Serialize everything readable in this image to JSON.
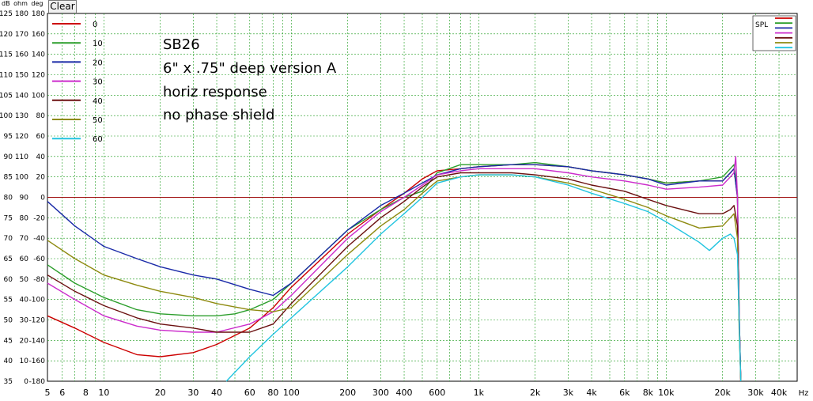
{
  "ui": {
    "clear_label": "Clear",
    "units_header": "dB  ohm deg"
  },
  "chart_data": {
    "type": "line",
    "x_scale": "log",
    "xlim": [
      5,
      50000
    ],
    "x_tick_labels": [
      {
        "v": 5,
        "t": "5"
      },
      {
        "v": 6,
        "t": "6"
      },
      {
        "v": 8,
        "t": "8"
      },
      {
        "v": 10,
        "t": "10"
      },
      {
        "v": 20,
        "t": "20"
      },
      {
        "v": 30,
        "t": "30"
      },
      {
        "v": 40,
        "t": "40"
      },
      {
        "v": 60,
        "t": "60"
      },
      {
        "v": 80,
        "t": "80"
      },
      {
        "v": 100,
        "t": "100"
      },
      {
        "v": 200,
        "t": "200"
      },
      {
        "v": 300,
        "t": "300"
      },
      {
        "v": 400,
        "t": "400"
      },
      {
        "v": 600,
        "t": "600"
      },
      {
        "v": 1000,
        "t": "1k"
      },
      {
        "v": 2000,
        "t": "2k"
      },
      {
        "v": 3000,
        "t": "3k"
      },
      {
        "v": 4000,
        "t": "4k"
      },
      {
        "v": 6000,
        "t": "6k"
      },
      {
        "v": 8000,
        "t": "8k"
      },
      {
        "v": 10000,
        "t": "10k"
      },
      {
        "v": 20000,
        "t": "20k"
      },
      {
        "v": 30000,
        "t": "30k"
      },
      {
        "v": 40000,
        "t": "40k"
      }
    ],
    "x_unit_label": "Hz",
    "ylim": [
      35,
      125
    ],
    "y_ticks_db": [
      125,
      120,
      115,
      110,
      105,
      100,
      95,
      90,
      85,
      80,
      75,
      70,
      65,
      60,
      55,
      50,
      45,
      40,
      35
    ],
    "y_ticks_ohm": [
      180,
      170,
      160,
      150,
      140,
      130,
      120,
      110,
      100,
      90,
      80,
      70,
      60,
      50,
      40,
      30,
      20,
      10,
      0
    ],
    "y_ticks_deg": [
      "180",
      "160",
      "140",
      "120",
      "100",
      "80",
      "60",
      "40",
      "20",
      "0",
      "-20",
      "-40",
      "-60",
      "-80",
      "-100",
      "-120",
      "-140",
      "-160",
      "-180"
    ],
    "reference_line_db": 80,
    "grid": true,
    "annotations": [
      "SB26",
      "6\" x .75\" deep version A",
      "horiz response",
      "no phase shield"
    ],
    "legend_label": "SPL",
    "legend_position": "top-right",
    "series": [
      {
        "name": "0",
        "color": "#cc0000",
        "points": [
          [
            5,
            51
          ],
          [
            7,
            48
          ],
          [
            10,
            44.5
          ],
          [
            15,
            41.5
          ],
          [
            20,
            41
          ],
          [
            30,
            42
          ],
          [
            40,
            44
          ],
          [
            60,
            48
          ],
          [
            80,
            53
          ],
          [
            100,
            58
          ],
          [
            200,
            71
          ],
          [
            300,
            77
          ],
          [
            400,
            81
          ],
          [
            500,
            84.5
          ],
          [
            600,
            86.5
          ],
          [
            800,
            87
          ],
          [
            1000,
            87.5
          ],
          [
            1500,
            88
          ],
          [
            2000,
            88
          ],
          [
            3000,
            87.5
          ],
          [
            4000,
            86.5
          ],
          [
            6000,
            85.5
          ],
          [
            8000,
            84.5
          ],
          [
            10000,
            83.5
          ],
          [
            15000,
            84
          ],
          [
            20000,
            84
          ],
          [
            22000,
            86
          ],
          [
            23000,
            87
          ],
          [
            24000,
            80
          ],
          [
            24500,
            52
          ],
          [
            25000,
            35
          ]
        ]
      },
      {
        "name": "10",
        "color": "#2b9e2b",
        "points": [
          [
            5,
            63.5
          ],
          [
            7,
            59
          ],
          [
            10,
            55.5
          ],
          [
            15,
            52.5
          ],
          [
            20,
            51.5
          ],
          [
            30,
            51
          ],
          [
            40,
            51
          ],
          [
            50,
            51.5
          ],
          [
            60,
            52.5
          ],
          [
            80,
            55
          ],
          [
            100,
            59
          ],
          [
            200,
            72
          ],
          [
            300,
            77
          ],
          [
            400,
            80
          ],
          [
            500,
            81.5
          ],
          [
            600,
            86
          ],
          [
            800,
            88
          ],
          [
            1000,
            88
          ],
          [
            1500,
            88
          ],
          [
            2000,
            88.5
          ],
          [
            3000,
            87.5
          ],
          [
            4000,
            86.5
          ],
          [
            6000,
            85.5
          ],
          [
            8000,
            84.5
          ],
          [
            10000,
            83.5
          ],
          [
            15000,
            84
          ],
          [
            20000,
            85
          ],
          [
            22000,
            87
          ],
          [
            23000,
            88
          ],
          [
            24000,
            81
          ],
          [
            24500,
            52
          ],
          [
            25000,
            35
          ]
        ]
      },
      {
        "name": "20",
        "color": "#1a2aa8",
        "points": [
          [
            5,
            79
          ],
          [
            7,
            73
          ],
          [
            10,
            68
          ],
          [
            15,
            65
          ],
          [
            20,
            63
          ],
          [
            30,
            61
          ],
          [
            40,
            60
          ],
          [
            60,
            57.5
          ],
          [
            80,
            56
          ],
          [
            100,
            59
          ],
          [
            200,
            72
          ],
          [
            300,
            78
          ],
          [
            400,
            81
          ],
          [
            500,
            83.5
          ],
          [
            600,
            85.5
          ],
          [
            800,
            87
          ],
          [
            1000,
            87.5
          ],
          [
            1500,
            88
          ],
          [
            2000,
            88
          ],
          [
            3000,
            87.5
          ],
          [
            4000,
            86.5
          ],
          [
            6000,
            85.5
          ],
          [
            8000,
            84.5
          ],
          [
            10000,
            83
          ],
          [
            15000,
            84
          ],
          [
            20000,
            84
          ],
          [
            22000,
            86
          ],
          [
            23000,
            87
          ],
          [
            24000,
            80
          ],
          [
            24500,
            52
          ],
          [
            25000,
            35
          ]
        ]
      },
      {
        "name": "30",
        "color": "#cc2ccc",
        "points": [
          [
            5,
            59
          ],
          [
            7,
            55
          ],
          [
            10,
            51
          ],
          [
            15,
            48.5
          ],
          [
            20,
            47.5
          ],
          [
            30,
            47
          ],
          [
            40,
            47
          ],
          [
            60,
            49
          ],
          [
            80,
            52
          ],
          [
            100,
            56
          ],
          [
            200,
            70
          ],
          [
            300,
            76.5
          ],
          [
            400,
            80
          ],
          [
            500,
            83
          ],
          [
            600,
            85.5
          ],
          [
            800,
            86.5
          ],
          [
            1000,
            87
          ],
          [
            1500,
            87
          ],
          [
            2000,
            87
          ],
          [
            3000,
            86
          ],
          [
            4000,
            85
          ],
          [
            6000,
            84
          ],
          [
            8000,
            83
          ],
          [
            10000,
            82
          ],
          [
            15000,
            82.5
          ],
          [
            20000,
            83
          ],
          [
            22000,
            85
          ],
          [
            23000,
            86
          ],
          [
            23500,
            90
          ],
          [
            24000,
            80
          ],
          [
            24500,
            52
          ],
          [
            25000,
            35
          ]
        ]
      },
      {
        "name": "40",
        "color": "#6b1010",
        "points": [
          [
            5,
            61
          ],
          [
            7,
            57
          ],
          [
            10,
            53.5
          ],
          [
            15,
            50.5
          ],
          [
            20,
            49
          ],
          [
            30,
            48
          ],
          [
            40,
            47
          ],
          [
            60,
            47
          ],
          [
            80,
            49
          ],
          [
            100,
            54
          ],
          [
            200,
            68
          ],
          [
            300,
            75
          ],
          [
            400,
            79
          ],
          [
            500,
            82.5
          ],
          [
            600,
            85
          ],
          [
            800,
            86
          ],
          [
            1000,
            86
          ],
          [
            1500,
            86
          ],
          [
            2000,
            85.5
          ],
          [
            3000,
            84.5
          ],
          [
            4000,
            83
          ],
          [
            6000,
            81.5
          ],
          [
            8000,
            79.5
          ],
          [
            10000,
            78
          ],
          [
            15000,
            76
          ],
          [
            20000,
            76
          ],
          [
            22000,
            77
          ],
          [
            23000,
            78
          ],
          [
            24000,
            73
          ],
          [
            24500,
            50
          ],
          [
            25000,
            35
          ]
        ]
      },
      {
        "name": "50",
        "color": "#8e8a10",
        "points": [
          [
            5,
            69.5
          ],
          [
            7,
            65
          ],
          [
            10,
            61
          ],
          [
            15,
            58.5
          ],
          [
            20,
            57
          ],
          [
            30,
            55.5
          ],
          [
            40,
            54
          ],
          [
            60,
            52.5
          ],
          [
            80,
            52
          ],
          [
            100,
            53
          ],
          [
            200,
            66
          ],
          [
            300,
            73
          ],
          [
            400,
            77
          ],
          [
            500,
            81
          ],
          [
            600,
            84
          ],
          [
            800,
            85
          ],
          [
            1000,
            85.5
          ],
          [
            1500,
            85.5
          ],
          [
            2000,
            85
          ],
          [
            3000,
            83.5
          ],
          [
            4000,
            82
          ],
          [
            6000,
            79.5
          ],
          [
            8000,
            77.5
          ],
          [
            10000,
            75.5
          ],
          [
            15000,
            72.5
          ],
          [
            20000,
            73
          ],
          [
            22000,
            75
          ],
          [
            23000,
            76
          ],
          [
            24000,
            70
          ],
          [
            24500,
            48
          ],
          [
            25000,
            35
          ]
        ]
      },
      {
        "name": "60",
        "color": "#22c4e0",
        "points": [
          [
            45,
            35
          ],
          [
            60,
            41
          ],
          [
            80,
            46.5
          ],
          [
            100,
            50.5
          ],
          [
            200,
            63
          ],
          [
            300,
            71
          ],
          [
            400,
            76
          ],
          [
            500,
            80
          ],
          [
            600,
            83.5
          ],
          [
            800,
            85
          ],
          [
            1000,
            85.5
          ],
          [
            1500,
            85.5
          ],
          [
            2000,
            85
          ],
          [
            3000,
            83
          ],
          [
            4000,
            81
          ],
          [
            6000,
            78.5
          ],
          [
            8000,
            76.5
          ],
          [
            10000,
            74
          ],
          [
            15000,
            69
          ],
          [
            17000,
            67
          ],
          [
            20000,
            70
          ],
          [
            22000,
            71
          ],
          [
            23000,
            70
          ],
          [
            24000,
            66
          ],
          [
            24500,
            50
          ],
          [
            25000,
            35
          ]
        ]
      }
    ]
  }
}
